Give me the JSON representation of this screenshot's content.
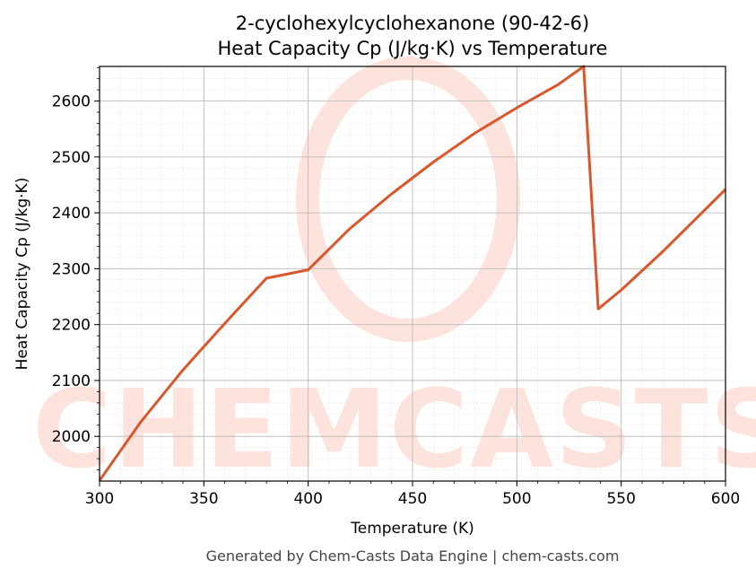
{
  "chart_data": {
    "type": "line",
    "title": "2-cyclohexylcyclohexanone (90-42-6)",
    "subtitle": "Heat Capacity Cp (J/kg·K) vs Temperature",
    "xlabel": "Temperature (K)",
    "ylabel": "Heat Capacity Cp (J/kg·K)",
    "xlim": [
      300,
      600
    ],
    "ylim": [
      1920,
      2662
    ],
    "xticks": [
      300,
      350,
      400,
      450,
      500,
      550,
      600
    ],
    "yticks": [
      2000,
      2100,
      2200,
      2300,
      2400,
      2500,
      2600
    ],
    "grid": true,
    "line_color": "#d9572b",
    "series": [
      {
        "x": [
          300,
          320,
          340,
          360,
          380,
          400,
          420,
          440,
          460,
          480,
          500,
          520,
          532,
          539,
          550,
          570,
          600
        ],
        "y": [
          1921,
          2027,
          2119,
          2202,
          2283,
          2298,
          2372,
          2434,
          2491,
          2543,
          2588,
          2630,
          2662,
          2228,
          2262,
          2331,
          2442
        ]
      }
    ]
  },
  "watermark": {
    "text": "CHEMCASTS",
    "color": "#fde3dc"
  },
  "footer": "Generated by Chem-Casts Data Engine | chem-casts.com"
}
